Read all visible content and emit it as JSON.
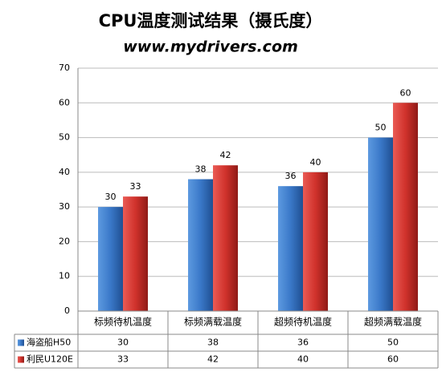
{
  "chart_data": {
    "type": "bar",
    "title": "CPU温度测试结果（摄氏度）",
    "subtitle": "www.mydrivers.com",
    "categories": [
      "标频待机温度",
      "标频满载温度",
      "超频待机温度",
      "超频满载温度"
    ],
    "series": [
      {
        "name": "海盗船H50",
        "color": "#3a78c8",
        "values": [
          30,
          38,
          36,
          50
        ]
      },
      {
        "name": "利民U120E",
        "color": "#d0322c",
        "values": [
          33,
          42,
          40,
          60
        ]
      }
    ],
    "ylim": [
      0,
      70
    ],
    "yticks": [
      0,
      10,
      20,
      30,
      40,
      50,
      60,
      70
    ],
    "grid": true,
    "data_table": true
  }
}
